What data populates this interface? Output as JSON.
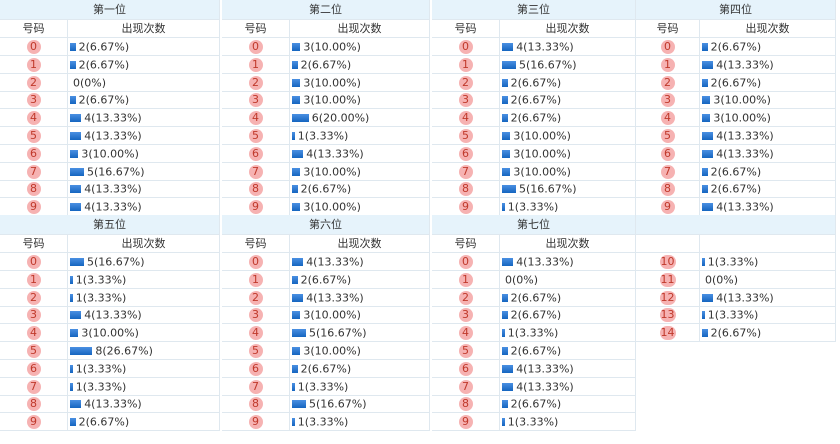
{
  "panels": [
    {
      "title": "第一位",
      "header": [
        "号码",
        "出现次数"
      ],
      "rows": [
        {
          "number": "0",
          "count": 2,
          "label": "2(6.67%)"
        },
        {
          "number": "1",
          "count": 2,
          "label": "2(6.67%)"
        },
        {
          "number": "2",
          "count": 0,
          "label": "0(0%)"
        },
        {
          "number": "3",
          "count": 2,
          "label": "2(6.67%)"
        },
        {
          "number": "4",
          "count": 4,
          "label": "4(13.33%)"
        },
        {
          "number": "5",
          "count": 4,
          "label": "4(13.33%)"
        },
        {
          "number": "6",
          "count": 3,
          "label": "3(10.00%)"
        },
        {
          "number": "7",
          "count": 5,
          "label": "5(16.67%)"
        },
        {
          "number": "8",
          "count": 4,
          "label": "4(13.33%)"
        },
        {
          "number": "9",
          "count": 4,
          "label": "4(13.33%)"
        }
      ]
    },
    {
      "title": "第二位",
      "header": [
        "号码",
        "出现次数"
      ],
      "rows": [
        {
          "number": "0",
          "count": 3,
          "label": "3(10.00%)"
        },
        {
          "number": "1",
          "count": 2,
          "label": "2(6.67%)"
        },
        {
          "number": "2",
          "count": 3,
          "label": "3(10.00%)"
        },
        {
          "number": "3",
          "count": 3,
          "label": "3(10.00%)"
        },
        {
          "number": "4",
          "count": 6,
          "label": "6(20.00%)"
        },
        {
          "number": "5",
          "count": 1,
          "label": "1(3.33%)"
        },
        {
          "number": "6",
          "count": 4,
          "label": "4(13.33%)"
        },
        {
          "number": "7",
          "count": 3,
          "label": "3(10.00%)"
        },
        {
          "number": "8",
          "count": 2,
          "label": "2(6.67%)"
        },
        {
          "number": "9",
          "count": 3,
          "label": "3(10.00%)"
        }
      ]
    },
    {
      "title": "第三位",
      "header": [
        "号码",
        "出现次数"
      ],
      "rows": [
        {
          "number": "0",
          "count": 4,
          "label": "4(13.33%)"
        },
        {
          "number": "1",
          "count": 5,
          "label": "5(16.67%)"
        },
        {
          "number": "2",
          "count": 2,
          "label": "2(6.67%)"
        },
        {
          "number": "3",
          "count": 2,
          "label": "2(6.67%)"
        },
        {
          "number": "4",
          "count": 2,
          "label": "2(6.67%)"
        },
        {
          "number": "5",
          "count": 3,
          "label": "3(10.00%)"
        },
        {
          "number": "6",
          "count": 3,
          "label": "3(10.00%)"
        },
        {
          "number": "7",
          "count": 3,
          "label": "3(10.00%)"
        },
        {
          "number": "8",
          "count": 5,
          "label": "5(16.67%)"
        },
        {
          "number": "9",
          "count": 1,
          "label": "1(3.33%)"
        }
      ]
    },
    {
      "title": "第四位",
      "header": [
        "号码",
        "出现次数"
      ],
      "rows": [
        {
          "number": "0",
          "count": 2,
          "label": "2(6.67%)"
        },
        {
          "number": "1",
          "count": 4,
          "label": "4(13.33%)"
        },
        {
          "number": "2",
          "count": 2,
          "label": "2(6.67%)"
        },
        {
          "number": "3",
          "count": 3,
          "label": "3(10.00%)"
        },
        {
          "number": "4",
          "count": 3,
          "label": "3(10.00%)"
        },
        {
          "number": "5",
          "count": 4,
          "label": "4(13.33%)"
        },
        {
          "number": "6",
          "count": 4,
          "label": "4(13.33%)"
        },
        {
          "number": "7",
          "count": 2,
          "label": "2(6.67%)"
        },
        {
          "number": "8",
          "count": 2,
          "label": "2(6.67%)"
        },
        {
          "number": "9",
          "count": 4,
          "label": "4(13.33%)"
        }
      ]
    },
    {
      "title": "第五位",
      "header": [
        "号码",
        "出现次数"
      ],
      "rows": [
        {
          "number": "0",
          "count": 5,
          "label": "5(16.67%)"
        },
        {
          "number": "1",
          "count": 1,
          "label": "1(3.33%)"
        },
        {
          "number": "2",
          "count": 1,
          "label": "1(3.33%)"
        },
        {
          "number": "3",
          "count": 4,
          "label": "4(13.33%)"
        },
        {
          "number": "4",
          "count": 3,
          "label": "3(10.00%)"
        },
        {
          "number": "5",
          "count": 8,
          "label": "8(26.67%)"
        },
        {
          "number": "6",
          "count": 1,
          "label": "1(3.33%)"
        },
        {
          "number": "7",
          "count": 1,
          "label": "1(3.33%)"
        },
        {
          "number": "8",
          "count": 4,
          "label": "4(13.33%)"
        },
        {
          "number": "9",
          "count": 2,
          "label": "2(6.67%)"
        }
      ]
    },
    {
      "title": "第六位",
      "header": [
        "号码",
        "出现次数"
      ],
      "rows": [
        {
          "number": "0",
          "count": 4,
          "label": "4(13.33%)"
        },
        {
          "number": "1",
          "count": 2,
          "label": "2(6.67%)"
        },
        {
          "number": "2",
          "count": 4,
          "label": "4(13.33%)"
        },
        {
          "number": "3",
          "count": 3,
          "label": "3(10.00%)"
        },
        {
          "number": "4",
          "count": 5,
          "label": "5(16.67%)"
        },
        {
          "number": "5",
          "count": 3,
          "label": "3(10.00%)"
        },
        {
          "number": "6",
          "count": 2,
          "label": "2(6.67%)"
        },
        {
          "number": "7",
          "count": 1,
          "label": "1(3.33%)"
        },
        {
          "number": "8",
          "count": 5,
          "label": "5(16.67%)"
        },
        {
          "number": "9",
          "count": 1,
          "label": "1(3.33%)"
        }
      ]
    },
    {
      "title": "第七位",
      "header": [
        "号码",
        "出现次数"
      ],
      "rows": [
        {
          "number": "0",
          "count": 4,
          "label": "4(13.33%)"
        },
        {
          "number": "1",
          "count": 0,
          "label": "0(0%)"
        },
        {
          "number": "2",
          "count": 2,
          "label": "2(6.67%)"
        },
        {
          "number": "3",
          "count": 2,
          "label": "2(6.67%)"
        },
        {
          "number": "4",
          "count": 1,
          "label": "1(3.33%)"
        },
        {
          "number": "5",
          "count": 2,
          "label": "2(6.67%)"
        },
        {
          "number": "6",
          "count": 4,
          "label": "4(13.33%)"
        },
        {
          "number": "7",
          "count": 4,
          "label": "4(13.33%)"
        },
        {
          "number": "8",
          "count": 2,
          "label": "2(6.67%)"
        },
        {
          "number": "9",
          "count": 1,
          "label": "1(3.33%)"
        }
      ]
    },
    {
      "rows": [
        {
          "number": "10",
          "count": 1,
          "label": "1(3.33%)"
        },
        {
          "number": "11",
          "count": 0,
          "label": "0(0%)"
        },
        {
          "number": "12",
          "count": 4,
          "label": "4(13.33%)"
        },
        {
          "number": "13",
          "count": 1,
          "label": "1(3.33%)"
        },
        {
          "number": "14",
          "count": 2,
          "label": "2(6.67%)"
        }
      ]
    }
  ]
}
